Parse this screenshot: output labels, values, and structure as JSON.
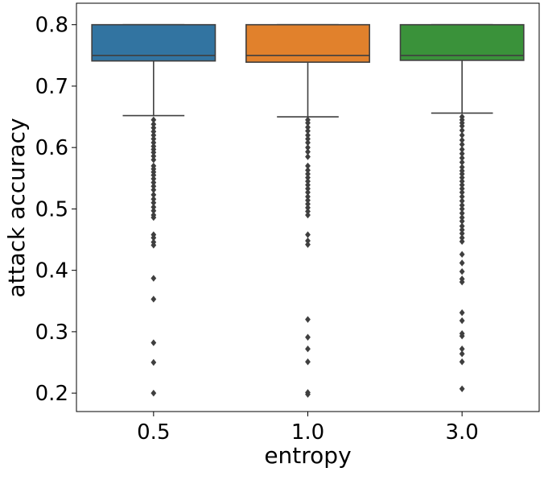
{
  "chart_data": {
    "type": "box",
    "xlabel": "entropy",
    "ylabel": "attack accuracy",
    "categories": [
      "0.5",
      "1.0",
      "3.0"
    ],
    "ylim": [
      0.17,
      0.835
    ],
    "yticks": [
      0.2,
      0.3,
      0.4,
      0.5,
      0.6,
      0.7,
      0.8
    ],
    "ytick_labels": [
      "0.2",
      "0.3",
      "0.4",
      "0.5",
      "0.6",
      "0.7",
      "0.8"
    ],
    "grid": false,
    "boxes": [
      {
        "category": "0.5",
        "color": "#3274a1",
        "q1": 0.741,
        "median": 0.75,
        "q3": 0.8,
        "whisker_low": 0.652,
        "whisker_high": 0.8,
        "outliers": [
          0.645,
          0.638,
          0.632,
          0.626,
          0.62,
          0.614,
          0.608,
          0.602,
          0.597,
          0.592,
          0.586,
          0.58,
          0.57,
          0.565,
          0.56,
          0.555,
          0.549,
          0.543,
          0.537,
          0.531,
          0.523,
          0.516,
          0.51,
          0.503,
          0.497,
          0.49,
          0.486,
          0.458,
          0.453,
          0.446,
          0.441,
          0.387,
          0.353,
          0.282,
          0.25,
          0.2
        ]
      },
      {
        "category": "1.0",
        "color": "#e1812c",
        "q1": 0.739,
        "median": 0.75,
        "q3": 0.8,
        "whisker_low": 0.65,
        "whisker_high": 0.8,
        "outliers": [
          0.645,
          0.64,
          0.633,
          0.627,
          0.62,
          0.614,
          0.608,
          0.6,
          0.593,
          0.585,
          0.57,
          0.563,
          0.557,
          0.551,
          0.545,
          0.539,
          0.533,
          0.527,
          0.52,
          0.514,
          0.508,
          0.502,
          0.496,
          0.49,
          0.458,
          0.448,
          0.442,
          0.32,
          0.291,
          0.272,
          0.251,
          0.201,
          0.198
        ]
      },
      {
        "category": "3.0",
        "color": "#3a923a",
        "q1": 0.742,
        "median": 0.75,
        "q3": 0.8,
        "whisker_low": 0.656,
        "whisker_high": 0.8,
        "outliers": [
          0.65,
          0.645,
          0.64,
          0.635,
          0.628,
          0.62,
          0.612,
          0.605,
          0.597,
          0.59,
          0.583,
          0.576,
          0.568,
          0.562,
          0.557,
          0.551,
          0.545,
          0.539,
          0.533,
          0.527,
          0.52,
          0.513,
          0.506,
          0.5,
          0.493,
          0.486,
          0.48,
          0.472,
          0.466,
          0.46,
          0.453,
          0.447,
          0.426,
          0.412,
          0.398,
          0.386,
          0.381,
          0.331,
          0.318,
          0.297,
          0.293,
          0.272,
          0.264,
          0.251,
          0.207
        ]
      }
    ]
  }
}
